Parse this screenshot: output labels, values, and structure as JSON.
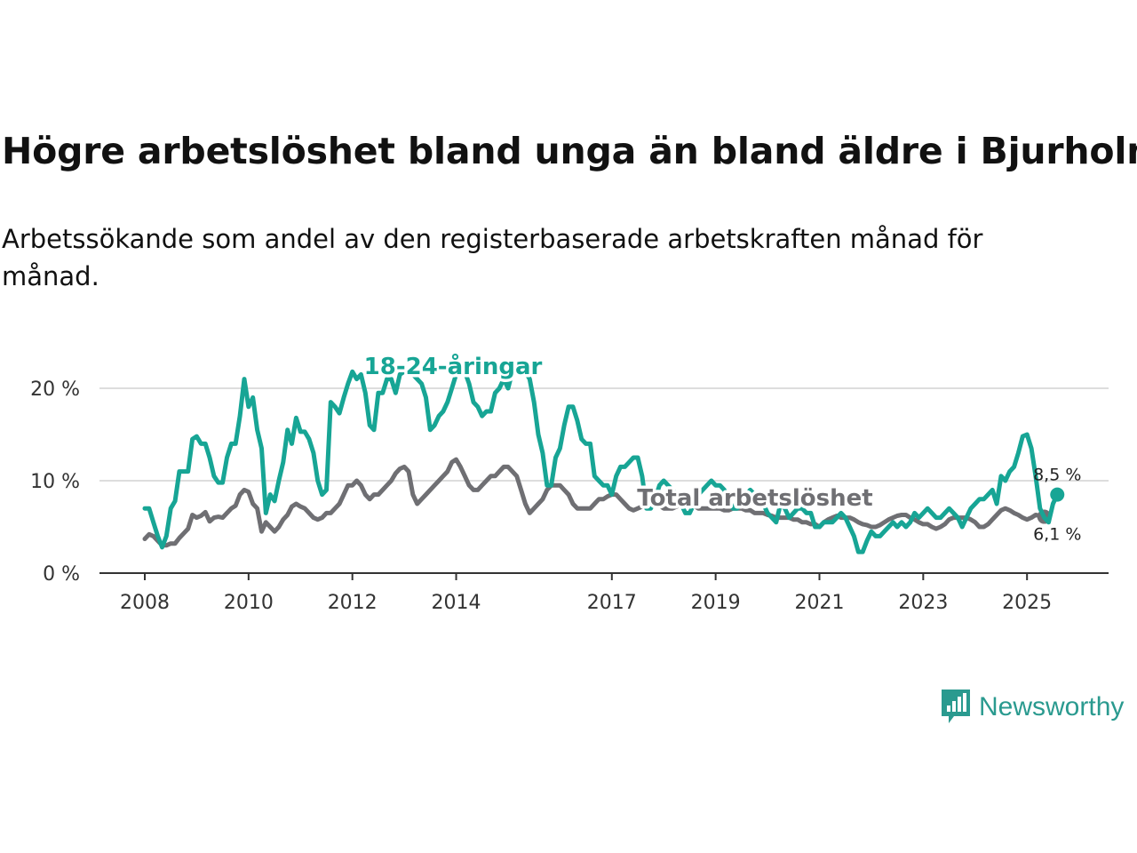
{
  "title": "Högre arbetslöshet bland unga än bland äldre i Bjurholm",
  "subtitle": "Arbetssökande som andel av den registerbaserade arbetskraften månad för månad.",
  "brand": {
    "name": "Newsworthy",
    "icon": "newsworthy-logo-icon",
    "color": "#2a9a8f"
  },
  "chart_data": {
    "type": "line",
    "title": "Högre arbetslöshet bland unga än bland äldre i Bjurholm",
    "xlabel": "",
    "ylabel": "",
    "xlim": [
      2008.0,
      2025.75
    ],
    "ylim": [
      0,
      22
    ],
    "x_ticks": [
      2008,
      2010,
      2012,
      2014,
      2017,
      2019,
      2021,
      2023,
      2025
    ],
    "y_ticks": [
      {
        "value": 0,
        "label": "0 %"
      },
      {
        "value": 10,
        "label": "10 %"
      },
      {
        "value": 20,
        "label": "20 %"
      }
    ],
    "grid": true,
    "x_start": 2008.0,
    "x_step": 0.0833333,
    "series": [
      {
        "name": "18-24-åringar",
        "label": "18-24-åringar",
        "color": "#17a595",
        "end_label": "8,5 %",
        "values": [
          7.0,
          7.0,
          5.5,
          4.0,
          2.8,
          4.0,
          7.0,
          7.8,
          11.0,
          11.0,
          11.0,
          14.5,
          14.8,
          14.0,
          14.0,
          12.5,
          10.5,
          9.8,
          9.8,
          12.5,
          14.0,
          14.0,
          17.0,
          21.0,
          18.0,
          19.0,
          15.5,
          13.5,
          6.5,
          8.5,
          7.8,
          10.0,
          12.0,
          15.5,
          14.0,
          16.8,
          15.3,
          15.3,
          14.5,
          13.0,
          10.0,
          8.5,
          9.0,
          18.5,
          18.0,
          17.3,
          19.0,
          20.5,
          22.0,
          21.0,
          21.5,
          19.5,
          16.0,
          15.5,
          19.5,
          19.5,
          21.0,
          21.0,
          19.5,
          21.5,
          22.0,
          22.5,
          21.5,
          21.0,
          20.5,
          19.0,
          15.5,
          16.0,
          17.0,
          17.5,
          18.5,
          20.0,
          21.5,
          22.0,
          22.5,
          20.5,
          18.5,
          18.0,
          17.0,
          17.5,
          17.5,
          19.5,
          20.0,
          21.0,
          20.0,
          22.0,
          22.0,
          22.5,
          22.0,
          21.0,
          18.5,
          15.0,
          13.0,
          9.5,
          9.5,
          12.5,
          13.5,
          16.0,
          18.0,
          18.0,
          16.5,
          14.5,
          14.0,
          14.0,
          10.5,
          10.0,
          9.5,
          9.5,
          8.5,
          10.5,
          11.5,
          11.5,
          12.0,
          12.5,
          12.5,
          10.5,
          7.0,
          7.0,
          8.0,
          9.5,
          10.0,
          9.5,
          9.0,
          8.5,
          7.5,
          6.5,
          6.5,
          7.5,
          8.5,
          9.0,
          9.5,
          10.0,
          9.5,
          9.5,
          9.0,
          8.0,
          7.0,
          7.0,
          7.5,
          8.5,
          9.0,
          8.5,
          8.0,
          7.5,
          6.5,
          6.0,
          5.5,
          7.5,
          7.0,
          6.0,
          6.5,
          7.0,
          7.0,
          6.5,
          6.5,
          5.0,
          5.0,
          5.5,
          5.5,
          5.5,
          6.0,
          6.5,
          6.0,
          5.0,
          4.0,
          2.3,
          2.3,
          3.5,
          4.5,
          4.0,
          4.0,
          4.5,
          5.0,
          5.5,
          5.0,
          5.5,
          5.0,
          5.5,
          6.5,
          6.0,
          6.5,
          7.0,
          6.5,
          6.0,
          6.0,
          6.5,
          7.0,
          6.5,
          6.0,
          5.0,
          6.0,
          7.0,
          7.5,
          8.0,
          8.0,
          8.5,
          9.0,
          7.5,
          10.5,
          10.0,
          11.0,
          11.5,
          13.0,
          14.8,
          15.0,
          13.5,
          10.5,
          7.0,
          6.0,
          5.5,
          7.5,
          8.5
        ]
      },
      {
        "name": "Total arbetslöshet",
        "label": "Total arbetslöshet",
        "color": "#6f6f73",
        "end_label": "6,1 %",
        "values": [
          3.7,
          4.2,
          4.0,
          3.5,
          3.0,
          3.0,
          3.2,
          3.2,
          3.8,
          4.3,
          4.8,
          6.3,
          6.0,
          6.2,
          6.6,
          5.6,
          6.0,
          6.1,
          6.0,
          6.5,
          7.0,
          7.3,
          8.5,
          9.0,
          8.8,
          7.5,
          7.0,
          4.5,
          5.5,
          5.0,
          4.5,
          5.0,
          5.8,
          6.3,
          7.2,
          7.5,
          7.2,
          7.0,
          6.5,
          6.0,
          5.8,
          6.0,
          6.5,
          6.5,
          7.0,
          7.5,
          8.5,
          9.5,
          9.5,
          10.0,
          9.5,
          8.5,
          8.0,
          8.5,
          8.5,
          9.0,
          9.5,
          10.0,
          10.8,
          11.3,
          11.5,
          11.0,
          8.5,
          7.5,
          8.0,
          8.5,
          9.0,
          9.5,
          10.0,
          10.5,
          11.0,
          12.0,
          12.3,
          11.5,
          10.5,
          9.5,
          9.0,
          9.0,
          9.5,
          10.0,
          10.5,
          10.5,
          11.0,
          11.5,
          11.5,
          11.0,
          10.5,
          9.0,
          7.5,
          6.5,
          7.0,
          7.5,
          8.0,
          9.0,
          9.5,
          9.5,
          9.5,
          9.0,
          8.5,
          7.5,
          7.0,
          7.0,
          7.0,
          7.0,
          7.5,
          8.0,
          8.0,
          8.3,
          8.5,
          8.5,
          8.0,
          7.5,
          7.0,
          6.8,
          7.0,
          7.2,
          7.5,
          7.5,
          7.5,
          7.3,
          7.0,
          7.0,
          7.0,
          7.2,
          7.5,
          7.5,
          7.5,
          7.3,
          7.0,
          7.0,
          7.0,
          7.0,
          7.0,
          7.0,
          6.8,
          6.8,
          7.0,
          7.0,
          7.0,
          6.8,
          6.8,
          6.5,
          6.5,
          6.5,
          6.3,
          6.2,
          6.0,
          6.0,
          6.0,
          6.0,
          5.8,
          5.8,
          5.5,
          5.5,
          5.3,
          5.3,
          5.0,
          5.5,
          5.8,
          6.0,
          6.2,
          6.0,
          6.0,
          6.0,
          5.8,
          5.5,
          5.3,
          5.2,
          5.0,
          5.0,
          5.2,
          5.5,
          5.8,
          6.0,
          6.2,
          6.3,
          6.3,
          6.0,
          5.8,
          5.5,
          5.3,
          5.3,
          5.0,
          4.8,
          5.0,
          5.3,
          5.8,
          6.0,
          6.0,
          6.0,
          6.0,
          5.8,
          5.5,
          5.0,
          5.0,
          5.3,
          5.8,
          6.3,
          6.8,
          7.0,
          6.8,
          6.5,
          6.3,
          6.0,
          5.8,
          6.0,
          6.3,
          6.2,
          6.1
        ]
      }
    ]
  }
}
